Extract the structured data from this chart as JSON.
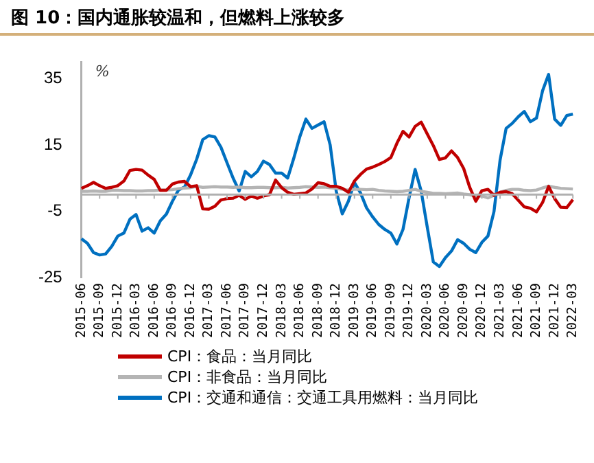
{
  "chart_data": {
    "type": "line",
    "title": "图 10：国内通胀较温和，但燃料上涨较多",
    "ylabel": "%",
    "categories": [
      "2015-06",
      null,
      null,
      "2015-09",
      null,
      null,
      "2015-12",
      null,
      null,
      "2016-03",
      null,
      null,
      "2016-06",
      null,
      null,
      "2016-09",
      null,
      null,
      "2016-12",
      null,
      null,
      "2017-03",
      null,
      null,
      "2017-06",
      null,
      null,
      "2017-09",
      null,
      null,
      "2017-12",
      null,
      null,
      "2018-03",
      null,
      null,
      "2018-06",
      null,
      null,
      "2018-09",
      null,
      null,
      "2018-12",
      null,
      null,
      "2019-03",
      null,
      null,
      "2019-06",
      null,
      null,
      "2019-09",
      null,
      null,
      "2019-12",
      null,
      null,
      "2020-03",
      null,
      null,
      "2020-06",
      null,
      null,
      "2020-09",
      null,
      null,
      "2020-12",
      null,
      null,
      "2021-03",
      null,
      null,
      "2021-06",
      null,
      null,
      "2021-09",
      null,
      null,
      "2021-12",
      null,
      null,
      "2022-03"
    ],
    "series": [
      {
        "name": "CPI：食品：当月同比",
        "color": "#c00000",
        "values": [
          1.9,
          2.7,
          3.7,
          2.7,
          1.9,
          2.2,
          2.7,
          4.1,
          7.3,
          7.6,
          7.4,
          5.9,
          4.6,
          1.3,
          1.3,
          3.2,
          3.8,
          4.0,
          2.4,
          2.7,
          -4.3,
          -4.4,
          -3.5,
          -1.6,
          -1.2,
          -1.1,
          -0.2,
          -1.4,
          -0.4,
          -1.1,
          -0.4,
          0.0,
          4.4,
          2.1,
          0.7,
          0.1,
          0.3,
          0.5,
          1.7,
          3.6,
          3.3,
          2.5,
          2.5,
          1.9,
          0.7,
          4.1,
          6.1,
          7.7,
          8.3,
          9.1,
          10.0,
          11.2,
          15.5,
          19.1,
          17.4,
          20.6,
          21.9,
          18.3,
          14.8,
          10.6,
          11.1,
          13.2,
          11.2,
          7.9,
          2.2,
          -2.0,
          1.2,
          1.6,
          -0.2,
          0.7,
          0.9,
          0.3,
          -1.7,
          -3.7,
          -4.1,
          -5.2,
          -2.4,
          2.5,
          -1.2,
          -3.8,
          -3.9,
          -1.5
        ]
      },
      {
        "name": "CPI：非食品：当月同比",
        "color": "#b4b4b4",
        "values": [
          1.0,
          1.0,
          1.1,
          1.0,
          1.0,
          1.3,
          1.3,
          1.2,
          1.2,
          1.1,
          1.1,
          1.2,
          1.2,
          1.4,
          1.4,
          1.5,
          1.8,
          2.0,
          2.1,
          2.5,
          2.2,
          2.3,
          2.4,
          2.3,
          2.3,
          2.2,
          2.3,
          2.1,
          2.1,
          2.2,
          2.2,
          2.1,
          2.1,
          2.2,
          2.0,
          2.1,
          2.2,
          2.4,
          2.3,
          2.2,
          2.3,
          2.1,
          1.9,
          1.6,
          1.4,
          1.6,
          1.6,
          1.5,
          1.6,
          1.3,
          1.1,
          1.0,
          0.9,
          1.0,
          1.3,
          1.6,
          1.0,
          0.7,
          0.4,
          0.4,
          0.3,
          0.4,
          0.5,
          0.2,
          0.0,
          -0.5,
          -0.4,
          -1.0,
          -0.2,
          0.7,
          1.3,
          1.6,
          1.6,
          1.3,
          1.2,
          1.4,
          2.0,
          2.6,
          2.2,
          1.9,
          1.8,
          1.7
        ]
      },
      {
        "name": "CPI：交通和通信：交通工具用燃料：当月同比",
        "color": "#0070c0",
        "values": [
          -13.3,
          -14.7,
          -17.5,
          -18.2,
          -17.9,
          -15.6,
          -12.5,
          -11.6,
          -7.4,
          -6.0,
          -11.0,
          -10.0,
          -11.6,
          -7.9,
          -5.9,
          -2.0,
          1.4,
          2.3,
          6.0,
          10.7,
          16.6,
          17.8,
          17.4,
          14.3,
          9.6,
          5.0,
          1.1,
          7.0,
          5.4,
          7.0,
          10.1,
          9.1,
          6.5,
          6.5,
          5.0,
          11.0,
          17.5,
          22.8,
          20.0,
          21.0,
          22.0,
          15.0,
          1.0,
          -5.8,
          -2.0,
          3.7,
          0.5,
          -4.0,
          -6.7,
          -9.0,
          -10.5,
          -11.6,
          -14.9,
          -10.5,
          -1.0,
          7.6,
          1.1,
          -9.8,
          -20.3,
          -21.7,
          -19.0,
          -17.0,
          -13.6,
          -14.7,
          -16.5,
          -17.5,
          -14.4,
          -12.5,
          -5.1,
          10.4,
          20.0,
          21.5,
          23.5,
          25.1,
          22.0,
          23.1,
          31.3,
          36.3,
          22.8,
          20.9,
          23.9,
          24.3
        ]
      }
    ],
    "ylim": [
      -25,
      40
    ],
    "yticks": [
      -25,
      -5,
      15,
      35
    ],
    "grid": false,
    "legend": "bottom",
    "marker": "none",
    "line_style": "solid"
  }
}
